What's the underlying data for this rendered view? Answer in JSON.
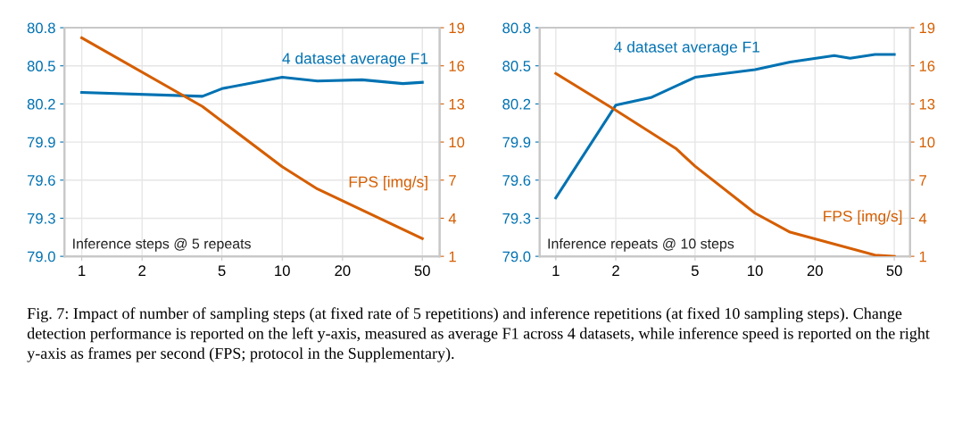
{
  "chart_data": [
    {
      "type": "line",
      "xlim": [
        0.82,
        61
      ],
      "xticks": [
        1,
        2,
        5,
        10,
        20,
        50
      ],
      "ylim": [
        79.0,
        80.8
      ],
      "yticks": [
        {
          "value": 79,
          "label": "79.0"
        },
        79.3,
        79.6,
        79.9,
        80.2,
        80.5,
        80.8
      ],
      "y2lim": [
        1,
        19
      ],
      "y2ticks": [
        1,
        4,
        7,
        10,
        13,
        16,
        19
      ],
      "grid": true,
      "legend": false,
      "log": "x",
      "series": [
        {
          "name": "4 dataset average F1",
          "color": "#0072b2",
          "x": [
            1,
            4,
            5,
            10,
            15,
            25,
            40,
            50
          ],
          "values": [
            80.29,
            80.26,
            80.32,
            80.41,
            80.38,
            80.39,
            80.36,
            80.37
          ]
        },
        {
          "name": "FPS [img/s]",
          "color": "#d55e00",
          "axis": "y2",
          "x": [
            1,
            4,
            10,
            15,
            50
          ],
          "values": [
            18.2,
            12.8,
            8.05,
            6.3,
            2.4
          ]
        }
      ],
      "annotations": [
        "Inference steps @ 5 repeats",
        "Fig. 7: Impact of number of sampling steps (at fixed rate of 5 repetitions) and inference repetitions (at fixed 10 sampling steps). Change detection performance is reported on the left y-axis, measured as average F1 across 4 datasets, while inference speed is reported on the right y-axis as frames per second (FPS; protocol in the Supplementary)."
      ]
    },
    {
      "type": "line",
      "xlim": [
        0.83,
        60
      ],
      "xticks": [
        1,
        2,
        5,
        10,
        20,
        50
      ],
      "ylim": [
        79.0,
        80.8
      ],
      "yticks": [
        {
          "value": 79,
          "label": "79.0"
        },
        79.3,
        79.6,
        79.9,
        80.2,
        80.5,
        80.8
      ],
      "y2lim": [
        1,
        19
      ],
      "y2ticks": [
        1,
        4,
        7,
        10,
        13,
        16,
        19
      ],
      "grid": true,
      "legend": false,
      "log": "x",
      "series": [
        {
          "name": "4 dataset average F1",
          "color": "#0072b2",
          "x": [
            1,
            2,
            3,
            5,
            10,
            15,
            25,
            30,
            40,
            50
          ],
          "values": [
            79.46,
            80.19,
            80.25,
            80.41,
            80.47,
            80.53,
            80.58,
            80.56,
            80.59,
            80.59
          ]
        },
        {
          "name": "FPS [img/s]",
          "color": "#d55e00",
          "axis": "y2",
          "x": [
            1,
            2,
            4,
            5,
            10,
            15,
            40,
            50
          ],
          "values": [
            15.4,
            12.5,
            9.5,
            8.1,
            4.4,
            2.9,
            1.1,
            1.0
          ]
        }
      ],
      "annotations": [
        "Inference repeats @ 10 steps"
      ]
    }
  ]
}
